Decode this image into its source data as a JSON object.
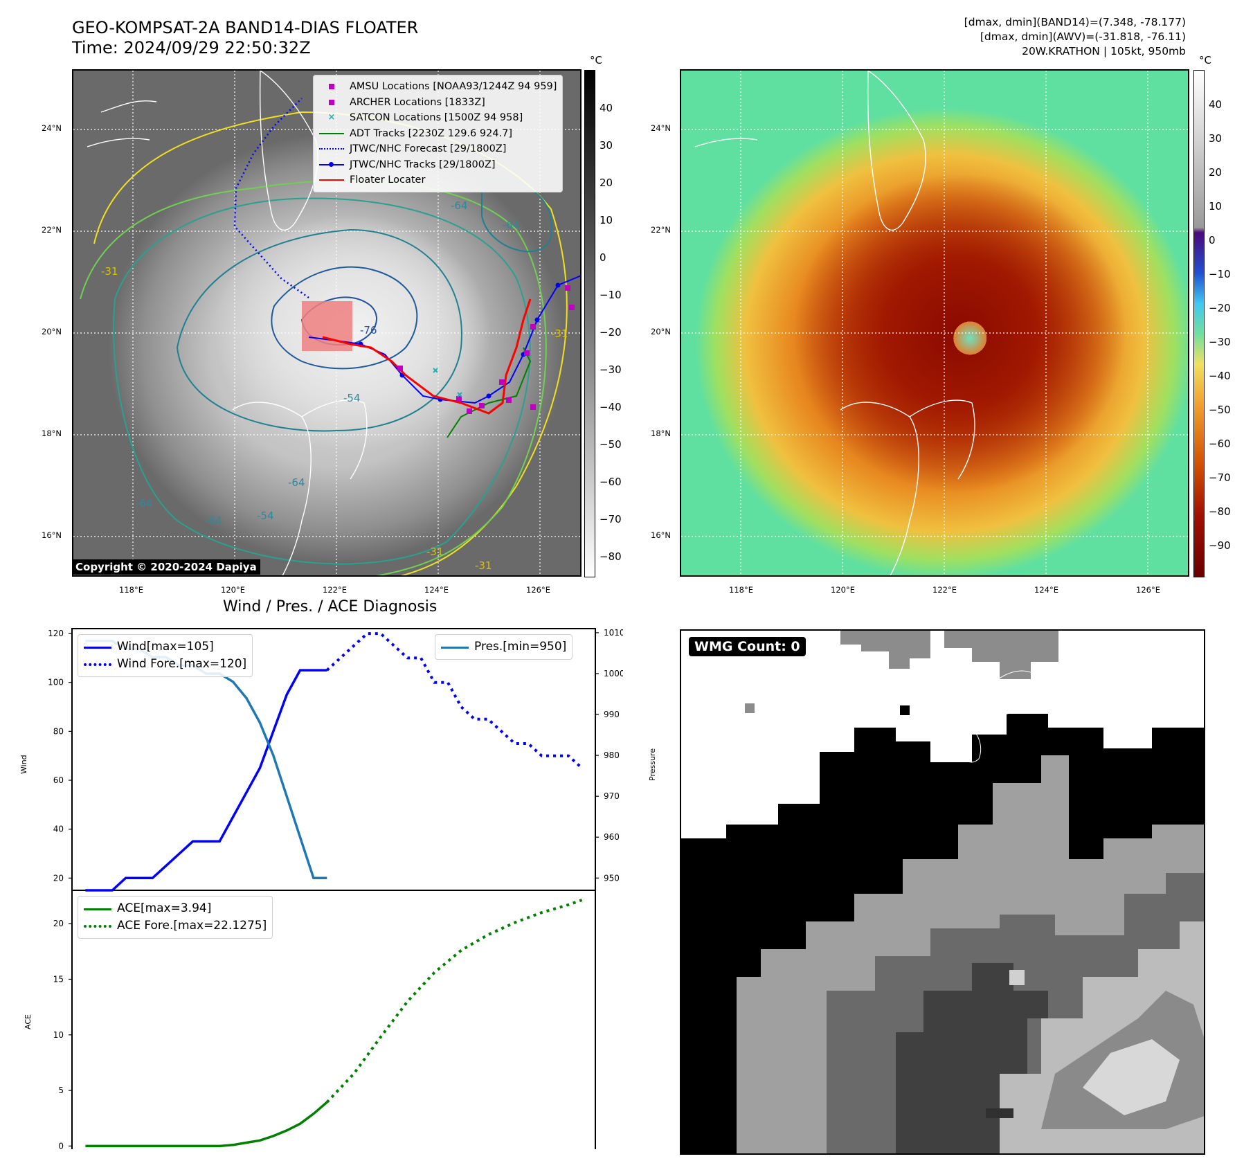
{
  "header": {
    "title_line1": "GEO-KOMPSAT-2A BAND14-DIAS FLOATER",
    "title_line2": "Time: 2024/09/29 22:50:32Z",
    "info_line1": "[dmax, dmin](BAND14)=(7.348, -78.177)",
    "info_line2": "[dmax, dmin](AWV)=(-31.818, -76.11)",
    "info_line3": "20W.KRATHON | 105kt, 950mb"
  },
  "map": {
    "lat_labels": [
      "24°N",
      "22°N",
      "20°N",
      "18°N",
      "16°N"
    ],
    "lon_labels": [
      "118°E",
      "120°E",
      "122°E",
      "124°E",
      "126°E"
    ],
    "contour_labels": [
      "-31",
      "-64",
      "-76",
      "-54",
      "-64",
      "-64",
      "-64",
      "-54",
      "-31",
      "-31",
      "-64",
      "-31"
    ],
    "copyright": "Copyright © 2020-2024 Dapiya"
  },
  "legend_tracks": [
    {
      "label": "AMSU Locations [NOAA93/1244Z 94 959]",
      "color": "#c000c0",
      "kind": "square"
    },
    {
      "label": "ARCHER Locations [1833Z]",
      "color": "#c000c0",
      "kind": "square"
    },
    {
      "label": "SATCON Locations [1500Z 94 958]",
      "color": "#20b0b0",
      "kind": "cross"
    },
    {
      "label": "ADT Tracks [2230Z 129.6 924.7]",
      "color": "#008000",
      "kind": "line"
    },
    {
      "label": "JTWC/NHC Forecast [29/1800Z]",
      "color": "#0000ff",
      "kind": "dotted"
    },
    {
      "label": "JTWC/NHC Tracks [29/1800Z]",
      "color": "#0000ff",
      "kind": "line-dot"
    },
    {
      "label": "Floater Locater",
      "color": "#ff0000",
      "kind": "line"
    }
  ],
  "colorbar_left": {
    "unit": "°C",
    "ticks": [
      "40",
      "30",
      "20",
      "10",
      "0",
      "−10",
      "−20",
      "−30",
      "−40",
      "−50",
      "−60",
      "−70",
      "−80"
    ]
  },
  "colorbar_right": {
    "unit": "°C",
    "ticks": [
      "40",
      "30",
      "20",
      "10",
      "0",
      "−10",
      "−20",
      "−30",
      "−40",
      "−50",
      "−60",
      "−70",
      "−80",
      "−90"
    ]
  },
  "diagnosis": {
    "title": "Wind / Pres. / ACE Diagnosis",
    "wind_legend": [
      "Wind[max=105]",
      "Wind Fore.[max=120]"
    ],
    "pres_legend": "Pres.[min=950]",
    "ace_legend": [
      "ACE[max=3.94]",
      "ACE Fore.[max=22.1275]"
    ],
    "wind_ylabel": "Wind",
    "pres_ylabel": "Pressure",
    "ace_ylabel": "ACE"
  },
  "wmg": {
    "label": "WMG Count: 0"
  },
  "colors": {
    "wind": "#0000ff",
    "pressure": "#1f77b4",
    "ace": "#008000"
  },
  "chart_data": [
    {
      "type": "line",
      "title": "Wind / Pres. / ACE Diagnosis",
      "ylabel": "Wind",
      "ylim": [
        15,
        122
      ],
      "xlim": [
        -1,
        38
      ],
      "yticks": [
        20,
        40,
        60,
        80,
        100,
        120
      ],
      "series": [
        {
          "name": "Wind[max=105]",
          "style": "solid",
          "x": [
            0,
            1,
            2,
            3,
            4,
            5,
            6,
            7,
            8,
            9,
            10,
            11,
            12,
            13,
            14,
            15,
            16,
            17,
            18
          ],
          "values": [
            15,
            15,
            15,
            20,
            20,
            20,
            25,
            30,
            35,
            35,
            35,
            45,
            55,
            65,
            80,
            95,
            105,
            105,
            105
          ]
        },
        {
          "name": "Wind Fore.[max=120]",
          "style": "dotted",
          "x": [
            18,
            19,
            20,
            21,
            22,
            23,
            24,
            25,
            26,
            27,
            28,
            29,
            30,
            31,
            32,
            33,
            34,
            35,
            36,
            37
          ],
          "values": [
            105,
            110,
            115,
            120,
            120,
            115,
            110,
            110,
            100,
            100,
            90,
            85,
            85,
            80,
            75,
            75,
            70,
            70,
            70,
            65
          ]
        }
      ]
    },
    {
      "type": "line",
      "ylabel": "Pressure",
      "ylim": [
        947,
        1011
      ],
      "yticks": [
        950,
        960,
        970,
        980,
        990,
        1000,
        1010
      ],
      "series": [
        {
          "name": "Pres.[min=950]",
          "x": [
            0,
            1,
            2,
            3,
            4,
            5,
            6,
            7,
            8,
            9,
            10,
            11,
            12,
            13,
            14,
            15,
            16,
            17,
            18
          ],
          "values": [
            1008,
            1008,
            1008,
            1006,
            1006,
            1004,
            1004,
            1002,
            1002,
            1000,
            1000,
            998,
            994,
            988,
            980,
            970,
            960,
            950,
            950
          ]
        }
      ]
    },
    {
      "type": "line",
      "ylabel": "ACE",
      "ylim": [
        -0.6,
        23
      ],
      "yticks": [
        0,
        5,
        10,
        15,
        20
      ],
      "series": [
        {
          "name": "ACE[max=3.94]",
          "style": "solid",
          "x": [
            0,
            2,
            4,
            6,
            8,
            10,
            11,
            12,
            13,
            14,
            15,
            16,
            17,
            18
          ],
          "values": [
            0,
            0,
            0,
            0,
            0,
            0,
            0.1,
            0.3,
            0.5,
            0.9,
            1.4,
            2.0,
            2.9,
            3.94
          ]
        },
        {
          "name": "ACE Fore.[max=22.1275]",
          "style": "dotted",
          "x": [
            18,
            20,
            22,
            24,
            26,
            28,
            30,
            32,
            34,
            36,
            37
          ],
          "values": [
            3.94,
            6.5,
            9.8,
            13.0,
            15.6,
            17.6,
            19.0,
            20.1,
            21.0,
            21.7,
            22.13
          ]
        }
      ]
    }
  ]
}
